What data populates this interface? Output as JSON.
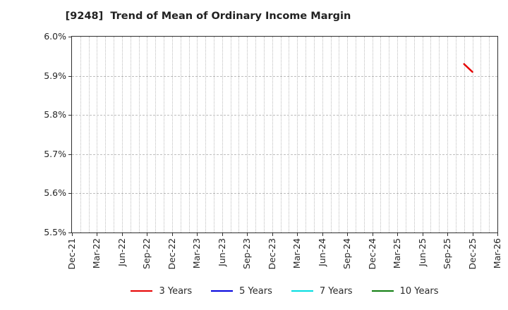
{
  "chart_data": {
    "type": "line",
    "title": "[9248]  Trend of Mean of Ordinary Income Margin",
    "xlabel": "",
    "ylabel": "",
    "ylim": [
      5.5,
      6.0
    ],
    "ytick_step": 0.1,
    "ytick_labels": [
      "6.0%",
      "5.9%",
      "5.8%",
      "5.7%",
      "5.6%",
      "5.5%"
    ],
    "ytick_values": [
      6.0,
      5.9,
      5.8,
      5.7,
      5.6,
      5.5
    ],
    "x_axis": {
      "start": "Dec-21",
      "end": "Mar-26",
      "months_total": 51,
      "tick_every_months": 3,
      "tick_labels": [
        "Dec-21",
        "Mar-22",
        "Jun-22",
        "Sep-22",
        "Dec-22",
        "Mar-23",
        "Jun-23",
        "Sep-23",
        "Dec-23",
        "Mar-24",
        "Jun-24",
        "Sep-24",
        "Dec-24",
        "Mar-25",
        "Jun-25",
        "Sep-25",
        "Dec-25",
        "Mar-26"
      ]
    },
    "grid": {
      "vertical": "dotted, monthly",
      "horizontal": "dashed, every 0.1%",
      "color": "#bdbdbd"
    },
    "legend_position": "bottom-center",
    "series": [
      {
        "name": "3 Years",
        "color": "#e60000",
        "points": [
          {
            "x": "Nov-25",
            "month_index": 47,
            "value": 5.93
          },
          {
            "x": "Dec-25",
            "month_index": 48,
            "value": 5.91
          }
        ]
      },
      {
        "name": "5 Years",
        "color": "#0000dd",
        "points": []
      },
      {
        "name": "7 Years",
        "color": "#00dde0",
        "points": []
      },
      {
        "name": "10 Years",
        "color": "#0e7d0e",
        "points": []
      }
    ]
  }
}
